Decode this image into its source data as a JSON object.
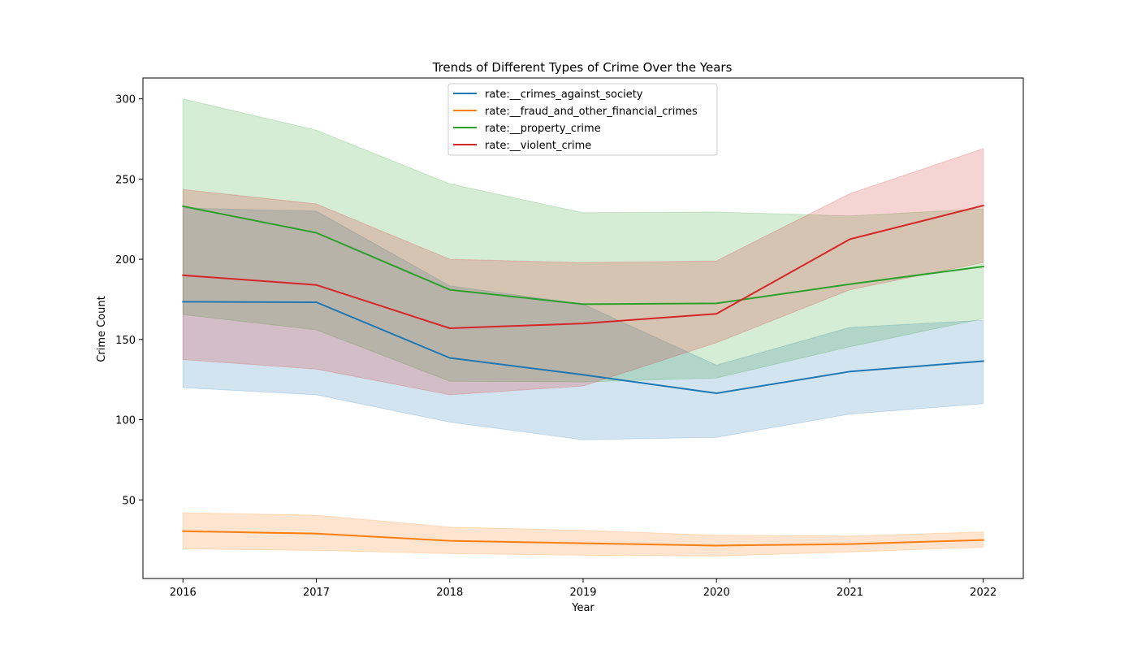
{
  "chart_data": {
    "type": "line",
    "title": "Trends of Different Types of Crime Over the Years",
    "xlabel": "Year",
    "ylabel": "Crime Count",
    "x": [
      2016,
      2017,
      2018,
      2019,
      2020,
      2021,
      2022
    ],
    "xlim": [
      2015.7,
      2022.3
    ],
    "ylim": [
      1,
      313
    ],
    "yticks": [
      50,
      100,
      150,
      200,
      250,
      300
    ],
    "grid": false,
    "legend_position": "top-center",
    "series": [
      {
        "name": "rate:__crimes_against_society",
        "color": "#1f77b4",
        "values": [
          173.5,
          173.2,
          138.5,
          128.0,
          116.5,
          130.0,
          136.5
        ],
        "lower": [
          120.0,
          115.5,
          98.5,
          87.5,
          89.0,
          103.5,
          110.0
        ],
        "upper": [
          232.0,
          230.0,
          183.5,
          172.0,
          134.0,
          157.5,
          162.0
        ]
      },
      {
        "name": "rate:__fraud_and_other_financial_crimes",
        "color": "#ff7f0e",
        "values": [
          30.5,
          29.0,
          24.5,
          23.0,
          21.5,
          22.5,
          25.0
        ],
        "lower": [
          19.5,
          18.5,
          16.5,
          15.5,
          15.0,
          17.5,
          20.5
        ],
        "upper": [
          42.0,
          40.5,
          33.0,
          31.0,
          28.0,
          27.5,
          30.0
        ]
      },
      {
        "name": "rate:__property_crime",
        "color": "#2ca02c",
        "values": [
          233.0,
          216.5,
          181.0,
          172.0,
          172.5,
          184.5,
          195.5
        ],
        "lower": [
          165.5,
          156.0,
          124.0,
          123.5,
          126.0,
          145.5,
          163.0
        ],
        "upper": [
          300.0,
          280.5,
          247.0,
          229.0,
          229.5,
          227.0,
          231.5
        ]
      },
      {
        "name": "rate:__violent_crime",
        "color": "#d62728",
        "values": [
          190.0,
          184.0,
          157.0,
          160.0,
          166.0,
          212.5,
          233.5
        ],
        "lower": [
          137.5,
          131.5,
          115.5,
          121.0,
          148.0,
          181.0,
          198.0
        ],
        "upper": [
          243.5,
          234.5,
          200.0,
          198.0,
          199.0,
          241.0,
          269.0
        ]
      }
    ]
  }
}
